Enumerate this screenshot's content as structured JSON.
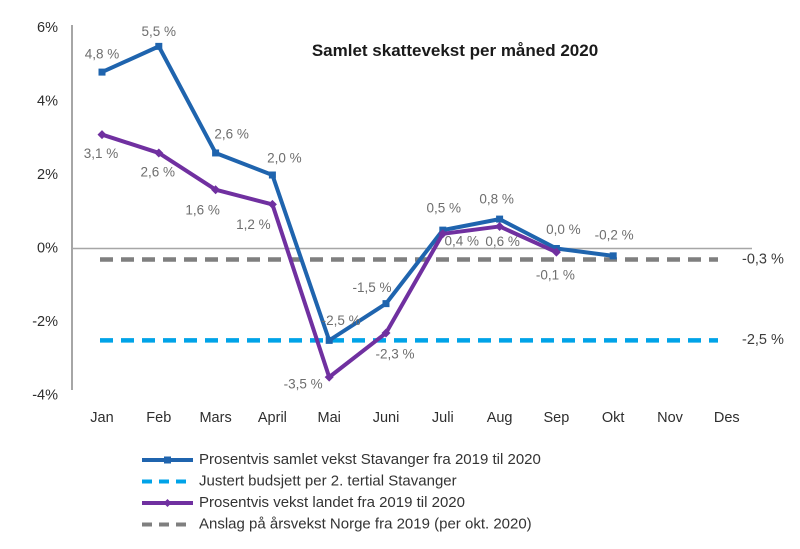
{
  "chart_data": {
    "type": "line",
    "title": "Samlet skattevekst per måned 2020",
    "categories": [
      "Jan",
      "Feb",
      "Mars",
      "April",
      "Mai",
      "Juni",
      "Juli",
      "Aug",
      "Sep",
      "Okt",
      "Nov",
      "Des"
    ],
    "ylim": [
      -4,
      6
    ],
    "grid": false,
    "legend_position": "bottom",
    "y_ticks": [
      {
        "value": 6,
        "label": "6%"
      },
      {
        "value": 4,
        "label": "4%"
      },
      {
        "value": 2,
        "label": "2%"
      },
      {
        "value": 0,
        "label": "0%"
      },
      {
        "value": -2,
        "label": "-2%"
      },
      {
        "value": -4,
        "label": "-4%"
      }
    ],
    "series": [
      {
        "id": "stavanger",
        "name": "Prosentvis samlet vekst Stavanger fra 2019 til 2020",
        "kind": "line",
        "marker": "square",
        "color": "#1F64AE",
        "values": [
          4.8,
          5.5,
          2.6,
          2.0,
          -2.5,
          -1.5,
          0.5,
          0.8,
          0.0,
          -0.2,
          null,
          null
        ],
        "point_labels": [
          "4,8 %",
          "5,5 %",
          "2,6 %",
          "2,0 %",
          "-2,5 %",
          "-1,5 %",
          "0,5 %",
          "0,8 %",
          "0,0 %",
          "-0,2 %"
        ]
      },
      {
        "id": "budsjett",
        "name": "Justert budsjett per 2. tertial Stavanger",
        "kind": "constant",
        "line_style": "dashed",
        "color": "#00A3E8",
        "value": -2.5,
        "right_label": "-2,5 %"
      },
      {
        "id": "landet",
        "name": "Prosentvis vekst landet fra 2019 til 2020",
        "kind": "line",
        "marker": "diamond",
        "color": "#7030A0",
        "values": [
          3.1,
          2.6,
          1.6,
          1.2,
          -3.5,
          -2.3,
          0.4,
          0.6,
          -0.1,
          null,
          null,
          null
        ],
        "point_labels": [
          "3,1 %",
          "2,6 %",
          "1,6 %",
          "1,2 %",
          "-3,5 %",
          "-2,3 %",
          "0,4 %",
          "0,6 %",
          "-0,1 %"
        ]
      },
      {
        "id": "norge",
        "name": "Anslag på årsvekst Norge fra 2019 (per okt. 2020)",
        "kind": "constant",
        "line_style": "dashed",
        "color": "#7F7F7F",
        "value": -0.3,
        "right_label": "-0,3 %"
      }
    ]
  }
}
